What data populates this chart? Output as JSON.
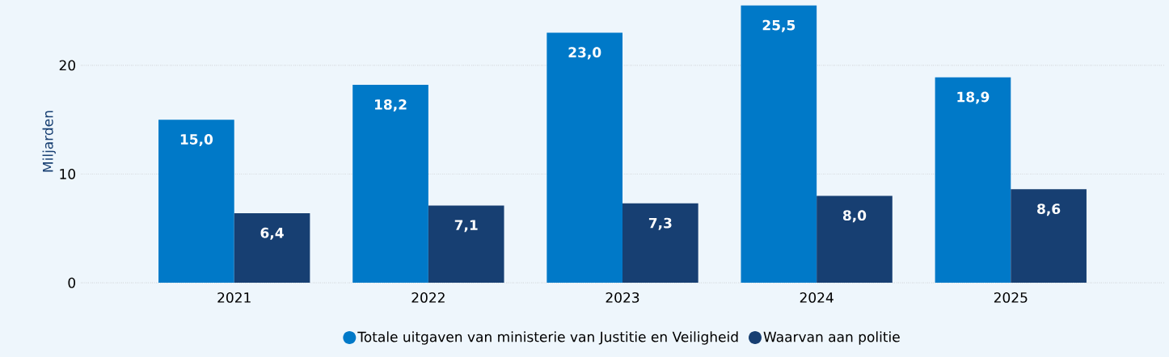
{
  "chart_data": {
    "type": "bar",
    "ylabel": "Miljarden",
    "categories": [
      "2021",
      "2022",
      "2023",
      "2024",
      "2025"
    ],
    "series": [
      {
        "name": "Totale uitgaven van ministerie van Justitie en Veiligheid",
        "color": "#0079c8",
        "values": [
          15.0,
          18.2,
          23.0,
          25.5,
          18.9
        ],
        "value_labels": [
          "15,0",
          "18,2",
          "23,0",
          "25,5",
          "18,9"
        ]
      },
      {
        "name": "Waarvan aan politie",
        "color": "#173f72",
        "values": [
          6.4,
          7.1,
          7.3,
          8.0,
          8.6
        ],
        "value_labels": [
          "6,4",
          "7,1",
          "7,3",
          "8,0",
          "8,6"
        ]
      }
    ],
    "ylim": [
      0,
      26
    ],
    "yticks": [
      0,
      10,
      20
    ],
    "grid": "y",
    "legend": "bottom"
  }
}
